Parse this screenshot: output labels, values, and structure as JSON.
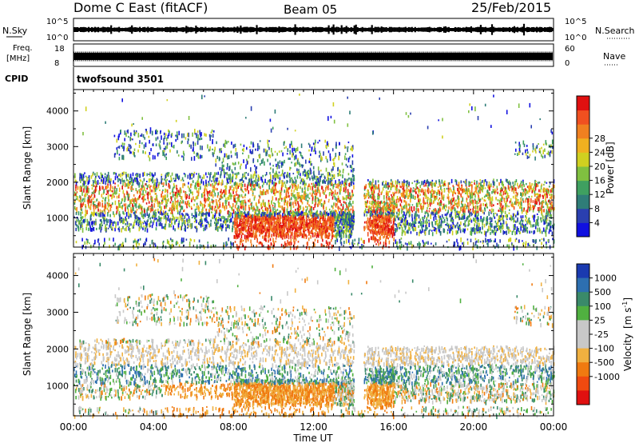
{
  "header": {
    "title": "Dome C East (fitACF)",
    "beam": "Beam 05",
    "date": "25/Feb/2015"
  },
  "top_panels": {
    "nsky_label": "N.Sky",
    "nsearch_label": "N.Search",
    "nsky_ticks": [
      "10^5",
      "10^0"
    ],
    "freq_label_1": "Freq.",
    "freq_label_2": "[MHz]",
    "freq_ticks": [
      "18",
      "8"
    ],
    "nave_ticks": [
      "60",
      "0"
    ],
    "nave_label": "Nave",
    "cpid_label": "CPID",
    "cpid_value": "twofsound 3501"
  },
  "chart_data": [
    {
      "type": "heatmap",
      "name": "power-panel",
      "xlabel": "Time UT",
      "ylabel": "Slant Range [km]",
      "xlim": [
        0,
        24
      ],
      "ylim": [
        180,
        4600
      ],
      "x_tick_labels": [
        "00:00",
        "04:00",
        "08:00",
        "12:00",
        "16:00",
        "20:00",
        "00:00"
      ],
      "y_ticks": [
        1000,
        2000,
        3000,
        4000
      ],
      "colorbar": {
        "label": "Power [dB]",
        "ticks": [
          4,
          8,
          12,
          16,
          20,
          24,
          28
        ],
        "colors": [
          "#1010e0",
          "#2a3fb0",
          "#2f7d78",
          "#3fa060",
          "#80c040",
          "#d0d020",
          "#f0b020",
          "#f08020",
          "#f05020",
          "#e01010"
        ]
      }
    },
    {
      "type": "heatmap",
      "name": "velocity-panel",
      "xlabel": "Time UT",
      "ylabel": "Slant Range [km]",
      "xlim": [
        0,
        24
      ],
      "ylim": [
        180,
        4600
      ],
      "x_tick_labels": [
        "00:00",
        "04:00",
        "08:00",
        "12:00",
        "16:00",
        "20:00",
        "00:00"
      ],
      "y_ticks": [
        1000,
        2000,
        3000,
        4000
      ],
      "colorbar": {
        "label_main": "Velocity",
        "label_unit": "[m s",
        "label_exp": "-1",
        "label_end": "]",
        "ticks": [
          "1000",
          "500",
          "100",
          "25",
          "-25",
          "-100",
          "-500",
          "-1000"
        ],
        "colors": [
          "#1a3ab0",
          "#2d6fb0",
          "#3a8a6a",
          "#50b040",
          "#c8c8c8",
          "#c8c8c8",
          "#f0b040",
          "#f07a10",
          "#f04a10",
          "#e01010"
        ]
      }
    }
  ]
}
